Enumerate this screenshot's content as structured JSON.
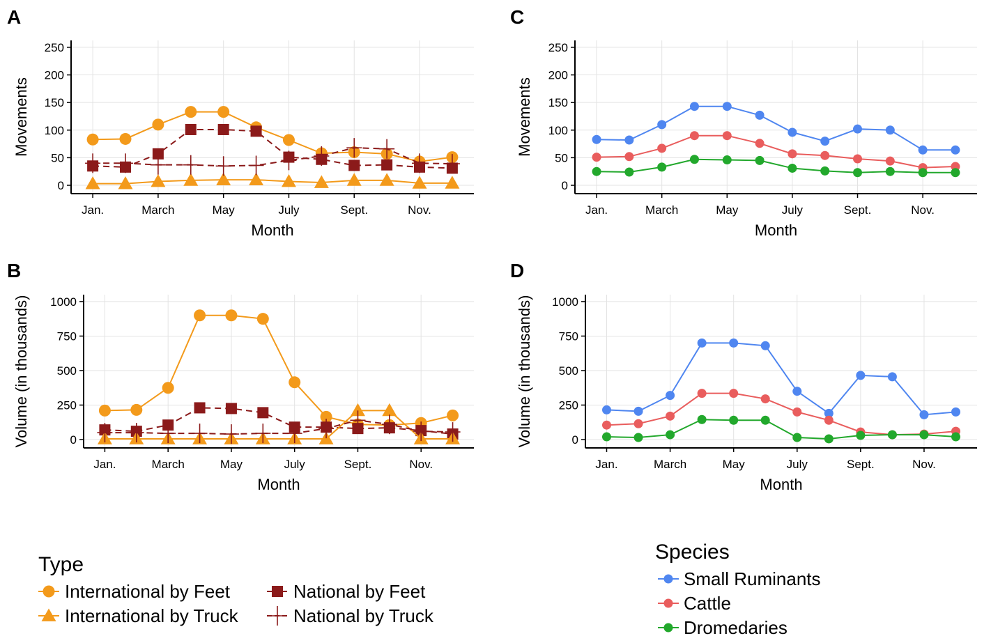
{
  "panels": [
    {
      "letter": "A"
    },
    {
      "letter": "B"
    },
    {
      "letter": "C"
    },
    {
      "letter": "D"
    }
  ],
  "colors": {
    "intl_feet": "#F39A1B",
    "intl_truck": "#F39A1B",
    "natl_feet": "#8B1A1A",
    "natl_truck": "#8B1A1A",
    "small_ruminants": "#4F86F0",
    "cattle": "#E95D5D",
    "dromedaries": "#22A82C"
  },
  "legend_type": {
    "title": "Type",
    "items": [
      {
        "label": "International by Feet",
        "marker": "circle",
        "color_key": "intl_feet",
        "dash": false
      },
      {
        "label": "National by Feet",
        "marker": "square",
        "color_key": "natl_feet",
        "dash": true
      },
      {
        "label": "International by Truck",
        "marker": "triangle",
        "color_key": "intl_truck",
        "dash": false
      },
      {
        "label": "National by Truck",
        "marker": "plus",
        "color_key": "natl_truck",
        "dash": true
      }
    ]
  },
  "legend_species": {
    "title": "Species",
    "items": [
      {
        "label": "Small Ruminants",
        "color_key": "small_ruminants"
      },
      {
        "label": "Cattle",
        "color_key": "cattle"
      },
      {
        "label": "Dromedaries",
        "color_key": "dromedaries"
      }
    ]
  },
  "chart_data": [
    {
      "panel": "A",
      "type": "line",
      "xlabel": "Month",
      "ylabel": "Movements",
      "x": [
        1,
        2,
        3,
        4,
        5,
        6,
        7,
        8,
        9,
        10,
        11,
        12
      ],
      "xticks": [
        1,
        3,
        5,
        7,
        9,
        11
      ],
      "xtick_labels": [
        "Jan.",
        "March",
        "May",
        "July",
        "Sept.",
        "Nov."
      ],
      "ylim": [
        0,
        260
      ],
      "yticks": [
        0,
        50,
        100,
        150,
        200,
        250
      ],
      "grid": true,
      "series": [
        {
          "name": "International by Feet",
          "marker": "circle",
          "color_key": "intl_feet",
          "dash": false,
          "values": [
            83,
            84,
            110,
            133,
            133,
            105,
            82,
            58,
            60,
            57,
            43,
            51
          ]
        },
        {
          "name": "National by Feet",
          "marker": "square",
          "color_key": "natl_feet",
          "dash": true,
          "values": [
            35,
            33,
            57,
            101,
            101,
            98,
            51,
            47,
            36,
            37,
            33,
            31
          ]
        },
        {
          "name": "International by Truck",
          "marker": "triangle",
          "color_key": "intl_truck",
          "dash": false,
          "values": [
            3,
            3,
            7,
            9,
            10,
            10,
            7,
            5,
            9,
            9,
            4,
            4
          ]
        },
        {
          "name": "National by Truck",
          "marker": "plus",
          "color_key": "natl_truck",
          "dash": true,
          "values": [
            40,
            40,
            37,
            37,
            35,
            36,
            45,
            53,
            68,
            66,
            40,
            39
          ]
        }
      ]
    },
    {
      "panel": "B",
      "type": "line",
      "xlabel": "Month",
      "ylabel": "Volume (in thousands)",
      "x": [
        1,
        2,
        3,
        4,
        5,
        6,
        7,
        8,
        9,
        10,
        11,
        12
      ],
      "xticks": [
        1,
        3,
        5,
        7,
        9,
        11
      ],
      "xtick_labels": [
        "Jan.",
        "March",
        "May",
        "July",
        "Sept.",
        "Nov."
      ],
      "ylim": [
        0,
        1040
      ],
      "yticks": [
        0,
        250,
        500,
        750,
        1000
      ],
      "grid": true,
      "series": [
        {
          "name": "International by Feet",
          "marker": "circle",
          "color_key": "intl_feet",
          "dash": false,
          "values": [
            210,
            215,
            375,
            900,
            900,
            875,
            415,
            165,
            110,
            105,
            120,
            175
          ]
        },
        {
          "name": "National by Feet",
          "marker": "square",
          "color_key": "natl_feet",
          "dash": true,
          "values": [
            70,
            60,
            105,
            230,
            225,
            195,
            90,
            90,
            80,
            85,
            65,
            40
          ]
        },
        {
          "name": "International by Truck",
          "marker": "triangle",
          "color_key": "intl_truck",
          "dash": false,
          "values": [
            5,
            5,
            5,
            5,
            5,
            5,
            5,
            5,
            210,
            210,
            5,
            5
          ]
        },
        {
          "name": "National by Truck",
          "marker": "plus",
          "color_key": "natl_truck",
          "dash": true,
          "values": [
            50,
            50,
            45,
            45,
            40,
            45,
            45,
            80,
            140,
            110,
            60,
            55
          ]
        }
      ]
    },
    {
      "panel": "C",
      "type": "line",
      "xlabel": "Month",
      "ylabel": "Movements",
      "x": [
        1,
        2,
        3,
        4,
        5,
        6,
        7,
        8,
        9,
        10,
        11,
        12
      ],
      "xticks": [
        1,
        3,
        5,
        7,
        9,
        11
      ],
      "xtick_labels": [
        "Jan.",
        "March",
        "May",
        "July",
        "Sept.",
        "Nov."
      ],
      "ylim": [
        0,
        260
      ],
      "yticks": [
        0,
        50,
        100,
        150,
        200,
        250
      ],
      "grid": true,
      "series": [
        {
          "name": "Small Ruminants",
          "marker": "dot",
          "color_key": "small_ruminants",
          "dash": false,
          "values": [
            83,
            82,
            110,
            143,
            143,
            127,
            96,
            80,
            102,
            100,
            64,
            64
          ]
        },
        {
          "name": "Cattle",
          "marker": "dot",
          "color_key": "cattle",
          "dash": false,
          "values": [
            51,
            52,
            67,
            90,
            90,
            76,
            57,
            54,
            48,
            44,
            32,
            34
          ]
        },
        {
          "name": "Dromedaries",
          "marker": "dot",
          "color_key": "dromedaries",
          "dash": false,
          "values": [
            25,
            24,
            33,
            47,
            46,
            45,
            31,
            26,
            23,
            25,
            23,
            23
          ]
        }
      ]
    },
    {
      "panel": "D",
      "type": "line",
      "xlabel": "Month",
      "ylabel": "Volume (in thousands)",
      "x": [
        1,
        2,
        3,
        4,
        5,
        6,
        7,
        8,
        9,
        10,
        11,
        12
      ],
      "xticks": [
        1,
        3,
        5,
        7,
        9,
        11
      ],
      "xtick_labels": [
        "Jan.",
        "March",
        "May",
        "July",
        "Sept.",
        "Nov."
      ],
      "ylim": [
        0,
        1040
      ],
      "yticks": [
        0,
        250,
        500,
        750,
        1000
      ],
      "grid": true,
      "series": [
        {
          "name": "Small Ruminants",
          "marker": "dot",
          "color_key": "small_ruminants",
          "dash": false,
          "values": [
            215,
            205,
            320,
            700,
            700,
            680,
            350,
            190,
            465,
            455,
            180,
            200
          ]
        },
        {
          "name": "Cattle",
          "marker": "dot",
          "color_key": "cattle",
          "dash": false,
          "values": [
            105,
            115,
            170,
            335,
            335,
            295,
            200,
            140,
            55,
            35,
            40,
            60
          ]
        },
        {
          "name": "Dromedaries",
          "marker": "dot",
          "color_key": "dromedaries",
          "dash": false,
          "values": [
            20,
            15,
            35,
            145,
            140,
            140,
            15,
            5,
            30,
            35,
            35,
            20
          ]
        }
      ]
    }
  ]
}
